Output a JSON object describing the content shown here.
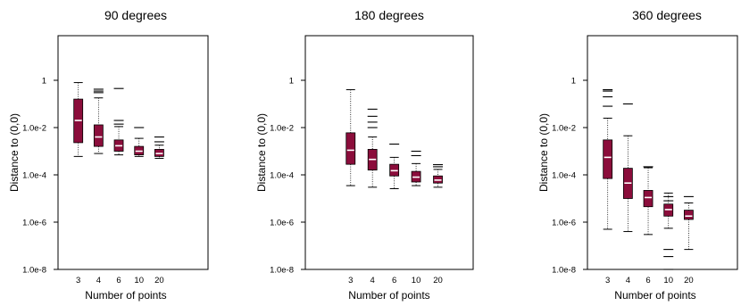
{
  "colors": {
    "box_fill": "#8b0d3b",
    "median": "#ffffff",
    "frame": "#000000"
  },
  "chart_data": [
    {
      "type": "boxplot",
      "title": "90 degrees",
      "xlabel": "Number of points",
      "ylabel": "Distance to (0,0)",
      "y_scale": "log",
      "ylim": [
        1e-08,
        1000
      ],
      "yticks": [
        "1",
        "1.0e-2",
        "1.0e-4",
        "1.0e-6",
        "1.0e-8"
      ],
      "categories": [
        "3",
        "4",
        "6",
        "10",
        "20"
      ],
      "boxes": [
        {
          "q1": 0.0023,
          "median": 0.02,
          "q3": 0.16,
          "whisker_low": 0.0006,
          "whisker_high": 0.8,
          "outliers": []
        },
        {
          "q1": 0.0016,
          "median": 0.004,
          "q3": 0.013,
          "whisker_low": 0.0008,
          "whisker_high": 0.18,
          "outliers": [
            0.3,
            0.35,
            0.42
          ]
        },
        {
          "q1": 0.001,
          "median": 0.0017,
          "q3": 0.003,
          "whisker_low": 0.0007,
          "whisker_high": 0.011,
          "outliers": [
            0.014,
            0.02,
            0.45
          ]
        },
        {
          "q1": 0.0007,
          "median": 0.001,
          "q3": 0.0016,
          "whisker_low": 0.0006,
          "whisker_high": 0.0035,
          "outliers": [
            0.01
          ]
        },
        {
          "q1": 0.0006,
          "median": 0.0008,
          "q3": 0.0012,
          "whisker_low": 0.0005,
          "whisker_high": 0.0018,
          "outliers": [
            0.0025,
            0.004
          ]
        }
      ]
    },
    {
      "type": "boxplot",
      "title": "180 degrees",
      "xlabel": "Number of points",
      "ylabel": "Distance to (0,0)",
      "y_scale": "log",
      "ylim": [
        1e-08,
        1000
      ],
      "yticks": [
        "1",
        "1.0e-2",
        "1.0e-4",
        "1.0e-6",
        "1.0e-8"
      ],
      "categories": [
        "3",
        "4",
        "6",
        "10",
        "20"
      ],
      "boxes": [
        {
          "q1": 0.00028,
          "median": 0.0011,
          "q3": 0.006,
          "whisker_low": 3.5e-05,
          "whisker_high": 0.4,
          "outliers": []
        },
        {
          "q1": 0.00016,
          "median": 0.00045,
          "q3": 0.0012,
          "whisker_low": 3e-05,
          "whisker_high": 0.004,
          "outliers": [
            0.01,
            0.017,
            0.03,
            0.06
          ]
        },
        {
          "q1": 9e-05,
          "median": 0.00015,
          "q3": 0.00028,
          "whisker_low": 2.6e-05,
          "whisker_high": 0.00055,
          "outliers": [
            0.002
          ]
        },
        {
          "q1": 5e-05,
          "median": 8e-05,
          "q3": 0.00014,
          "whisker_low": 3.5e-05,
          "whisker_high": 0.0003,
          "outliers": [
            0.00065,
            0.001
          ]
        },
        {
          "q1": 4.5e-05,
          "median": 6e-05,
          "q3": 9e-05,
          "whisker_low": 3e-05,
          "whisker_high": 0.00017,
          "outliers": [
            0.00022,
            0.00027
          ]
        }
      ]
    },
    {
      "type": "boxplot",
      "title": "360 degrees",
      "xlabel": "Number of points",
      "ylabel": "Distance to (0,0)",
      "y_scale": "log",
      "ylim": [
        1e-08,
        1000
      ],
      "yticks": [
        "1",
        "1.0e-2",
        "1.0e-4",
        "1.0e-6",
        "1.0e-8"
      ],
      "categories": [
        "3",
        "4",
        "6",
        "10",
        "20"
      ],
      "boxes": [
        {
          "q1": 7e-05,
          "median": 0.00055,
          "q3": 0.003,
          "whisker_low": 5e-07,
          "whisker_high": 0.025,
          "outliers": [
            0.08,
            0.2,
            0.35,
            0.4
          ]
        },
        {
          "q1": 1e-05,
          "median": 4.5e-05,
          "q3": 0.00019,
          "whisker_low": 4e-07,
          "whisker_high": 0.0045,
          "outliers": [
            0.1
          ]
        },
        {
          "q1": 4.5e-06,
          "median": 1.1e-05,
          "q3": 2.2e-05,
          "whisker_low": 3e-07,
          "whisker_high": 0.0002,
          "outliers": [
            0.00022
          ]
        },
        {
          "q1": 1.8e-06,
          "median": 3.4e-06,
          "q3": 5.8e-06,
          "whisker_low": 5.5e-07,
          "whisker_high": 1.7e-05,
          "outliers": [
            8e-06,
            1.2e-05,
            7e-08,
            3.5e-08,
            1e-08
          ]
        },
        {
          "q1": 1.3e-06,
          "median": 1.8e-06,
          "q3": 3.2e-06,
          "whisker_low": 7e-08,
          "whisker_high": 6.5e-06,
          "outliers": [
            1.2e-05
          ]
        }
      ]
    }
  ]
}
